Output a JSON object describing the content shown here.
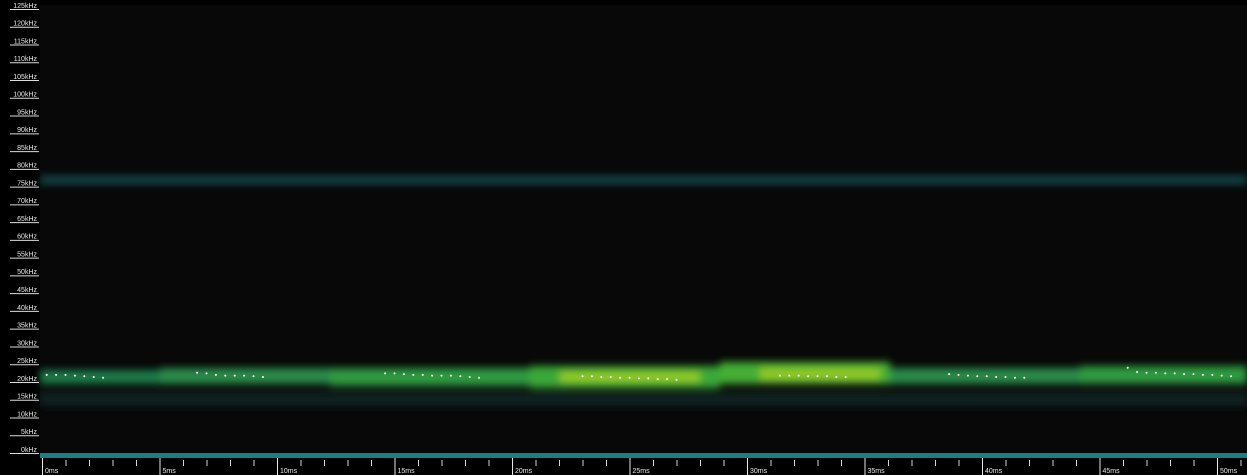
{
  "chart_data": {
    "type": "spectrogram",
    "x": [
      0.2,
      0.6,
      1.0,
      1.4,
      1.8,
      2.2,
      2.6,
      6.6,
      7.0,
      7.4,
      7.8,
      8.2,
      8.6,
      9.0,
      9.4,
      14.6,
      15.0,
      15.4,
      15.8,
      16.2,
      16.6,
      17.0,
      17.4,
      17.8,
      18.2,
      18.6,
      23.0,
      23.4,
      23.8,
      24.2,
      24.6,
      25.0,
      25.4,
      25.8,
      26.2,
      26.6,
      27.0,
      31.4,
      31.8,
      32.2,
      32.6,
      33.0,
      33.4,
      33.8,
      34.2,
      38.6,
      39.0,
      39.4,
      39.8,
      40.2,
      40.6,
      41.0,
      41.4,
      41.8,
      46.2,
      46.6,
      47.0,
      47.4,
      47.8,
      48.2,
      48.6,
      49.0,
      49.4,
      49.8,
      50.2,
      50.6
    ],
    "values": [
      22,
      22,
      22,
      21.8,
      21.6,
      21.4,
      21.2,
      22.6,
      22.4,
      22,
      21.8,
      21.8,
      21.8,
      21.6,
      21.4,
      22.4,
      22.4,
      22.2,
      22,
      22,
      21.8,
      21.8,
      21.8,
      21.6,
      21.4,
      21.2,
      21.6,
      21.6,
      21.4,
      21.4,
      21.2,
      21.2,
      21,
      21,
      20.8,
      20.8,
      20.6,
      21.8,
      21.8,
      21.8,
      21.6,
      21.6,
      21.6,
      21.4,
      21.4,
      22.2,
      22,
      21.8,
      21.6,
      21.6,
      21.4,
      21.4,
      21.2,
      21.2,
      24,
      22.8,
      22.6,
      22.6,
      22.4,
      22.4,
      22.2,
      22.2,
      22,
      22,
      21.8,
      21.6
    ],
    "color": "#ffffff",
    "xlim": [
      0,
      51.5
    ],
    "xticks": [
      {
        "value": 0,
        "label": "0ms"
      },
      {
        "value": 5,
        "label": "5ms"
      },
      {
        "value": 10,
        "label": "10ms"
      },
      {
        "value": 15,
        "label": "15ms"
      },
      {
        "value": 20,
        "label": "20ms"
      },
      {
        "value": 25,
        "label": "25ms"
      },
      {
        "value": 30,
        "label": "30ms"
      },
      {
        "value": 35,
        "label": "35ms"
      },
      {
        "value": 40,
        "label": "40ms"
      },
      {
        "value": 45,
        "label": "45ms"
      },
      {
        "value": 50,
        "label": "50ms"
      }
    ],
    "ylim": [
      0,
      125
    ],
    "yticks": [
      {
        "value": 0,
        "label": "0kHz"
      },
      {
        "value": 5,
        "label": "5kHz"
      },
      {
        "value": 10,
        "label": "10kHz"
      },
      {
        "value": 15,
        "label": "15kHz"
      },
      {
        "value": 20,
        "label": "20kHz"
      },
      {
        "value": 25,
        "label": "25kHz"
      },
      {
        "value": 30,
        "label": "30kHz"
      },
      {
        "value": 35,
        "label": "35kHz"
      },
      {
        "value": 40,
        "label": "40kHz"
      },
      {
        "value": 45,
        "label": "45kHz"
      },
      {
        "value": 50,
        "label": "50kHz"
      },
      {
        "value": 55,
        "label": "55kHz"
      },
      {
        "value": 60,
        "label": "60kHz"
      },
      {
        "value": 65,
        "label": "65kHz"
      },
      {
        "value": 70,
        "label": "70kHz"
      },
      {
        "value": 75,
        "label": "75kHz"
      },
      {
        "value": 80,
        "label": "80kHz"
      },
      {
        "value": 85,
        "label": "85kHz"
      },
      {
        "value": 90,
        "label": "90kHz"
      },
      {
        "value": 95,
        "label": "95kHz"
      },
      {
        "value": 100,
        "label": "100kHz"
      },
      {
        "value": 105,
        "label": "105kHz"
      },
      {
        "value": 110,
        "label": "110kHz"
      },
      {
        "value": 115,
        "label": "115kHz"
      },
      {
        "value": 120,
        "label": "120kHz"
      },
      {
        "value": 125,
        "label": "125kHz"
      }
    ]
  }
}
